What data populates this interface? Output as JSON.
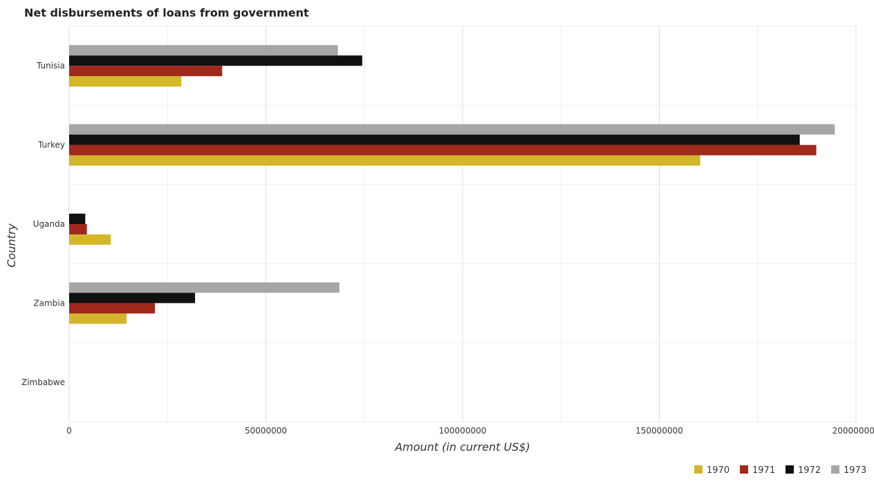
{
  "chart_data": {
    "type": "bar",
    "orientation": "horizontal",
    "title": "Net disbursements of loans from government",
    "xlabel": "Amount (in current US$)",
    "ylabel": "Country",
    "categories": [
      "Tunisia",
      "Turkey",
      "Uganda",
      "Zambia",
      "Zimbabwe"
    ],
    "xlim": [
      0,
      200000000
    ],
    "xticks": [
      0,
      50000000,
      100000000,
      150000000,
      200000000
    ],
    "xtick_labels": [
      "0",
      "50000000",
      "100000000",
      "150000000",
      "200000000"
    ],
    "grid": true,
    "legend_position": "bottom-right",
    "series": [
      {
        "name": "1970",
        "color": "#d4b62a",
        "values": [
          28500000,
          160400000,
          10600000,
          14600000,
          0
        ]
      },
      {
        "name": "1971",
        "color": "#a0291c",
        "values": [
          38900000,
          189900000,
          4500000,
          21800000,
          0
        ]
      },
      {
        "name": "1972",
        "color": "#111111",
        "values": [
          74500000,
          185700000,
          4100000,
          32000000,
          0
        ]
      },
      {
        "name": "1973",
        "color": "#a6a6a6",
        "values": [
          68300000,
          194600000,
          0,
          68700000,
          0
        ]
      }
    ]
  }
}
